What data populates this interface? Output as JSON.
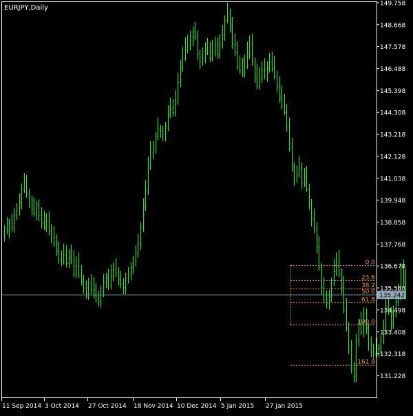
{
  "window": {
    "symbol_label": "EURJPY,Daily"
  },
  "colors": {
    "background": "#000000",
    "frame": "#ffffff",
    "candle": "#00ff00",
    "bid_line": "#6f8fa7",
    "bid_box": "#96a9ba",
    "fib": "#e8963c",
    "text": "#ffffff"
  },
  "chart_data": {
    "type": "candlestick",
    "symbol": "EURJPY",
    "timeframe": "Daily",
    "y_range": [
      130.15,
      149.79
    ],
    "price_ticks": [
      "149.758",
      "148.668",
      "147.578",
      "146.488",
      "145.398",
      "144.308",
      "143.218",
      "142.128",
      "141.038",
      "139.948",
      "138.858",
      "137.768",
      "136.678",
      "135.588",
      "134.498",
      "133.408",
      "132.318",
      "131.228"
    ],
    "date_ticks": [
      "11 Sep 2014",
      "3 Oct 2014",
      "27 Oct 2014",
      "18 Nov 2014",
      "10 Dec 2014",
      "5 Jan 2015",
      "27 Jan 2015"
    ],
    "bid_label": "135.242",
    "bid_value": 135.242,
    "fib_levels": [
      {
        "label": "0.0",
        "price": 136.7
      },
      {
        "label": "23.6",
        "price": 135.95
      },
      {
        "label": "38.2",
        "price": 135.55
      },
      {
        "label": "50.0",
        "price": 135.25
      },
      {
        "label": "61.8",
        "price": 134.85
      },
      {
        "label": "100.0",
        "price": 133.75
      },
      {
        "label": "161.8",
        "price": 131.75
      }
    ],
    "series_close": [
      138.5,
      138.4,
      138.8,
      138.6,
      139.2,
      139.4,
      139.8,
      140.5,
      140.8,
      140.3,
      139.9,
      139.5,
      139.3,
      139.7,
      139.2,
      138.8,
      138.6,
      138.9,
      138.4,
      138.1,
      137.8,
      137.4,
      137.0,
      136.9,
      137.2,
      136.8,
      137.1,
      136.9,
      136.3,
      136.7,
      136.2,
      135.9,
      135.6,
      135.3,
      135.8,
      135.5,
      135.2,
      135.0,
      134.9,
      135.4,
      135.9,
      136.1,
      135.7,
      136.2,
      136.5,
      136.3,
      136.0,
      135.8,
      135.6,
      136.1,
      136.3,
      136.6,
      136.9,
      137.3,
      137.8,
      138.6,
      139.6,
      140.4,
      141.6,
      142.3,
      142.6,
      143.1,
      143.5,
      143.4,
      143.2,
      143.6,
      144.2,
      144.5,
      144.3,
      144.9,
      145.8,
      146.5,
      147.0,
      147.4,
      147.6,
      147.9,
      148.3,
      148.1,
      147.2,
      146.8,
      147.0,
      147.4,
      147.3,
      147.0,
      147.3,
      147.6,
      147.2,
      147.7,
      148.2,
      148.9,
      149.2,
      148.6,
      147.7,
      147.3,
      146.6,
      146.4,
      146.2,
      146.6,
      147.2,
      147.7,
      146.8,
      146.1,
      145.6,
      146.0,
      146.4,
      146.1,
      146.5,
      146.8,
      146.5,
      146.1,
      145.6,
      145.0,
      144.6,
      144.3,
      143.6,
      142.6,
      141.6,
      141.0,
      141.2,
      141.5,
      140.8,
      141.0,
      140.5,
      139.8,
      139.0,
      138.5,
      137.6,
      136.6,
      135.6,
      135.0,
      134.8,
      135.2,
      135.8,
      136.4,
      136.9,
      136.3,
      135.6,
      134.5,
      133.6,
      132.6,
      131.6,
      131.2,
      133.0,
      133.8,
      133.4,
      134.3,
      133.6,
      132.8,
      132.4,
      132.3,
      132.5,
      132.6,
      133.0,
      133.5,
      134.6,
      134.4,
      133.8,
      134.3,
      134.9,
      135.3,
      136.6,
      135.9,
      135.2
    ]
  }
}
